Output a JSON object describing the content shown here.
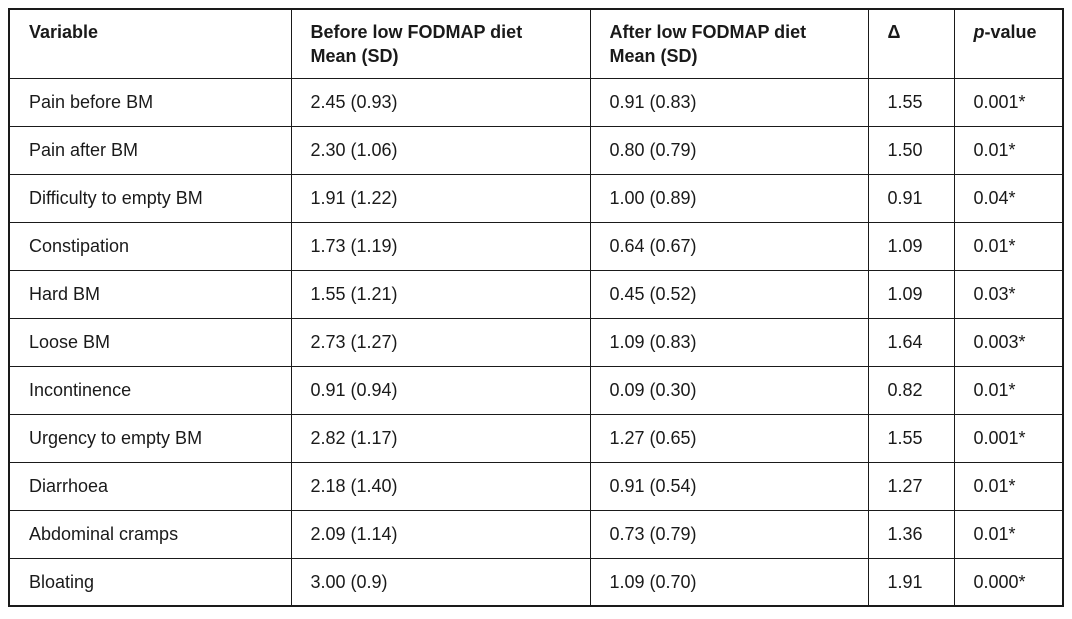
{
  "table": {
    "headers": {
      "variable": "Variable",
      "before": {
        "line1": "Before low FODMAP diet",
        "line2": "Mean (SD)"
      },
      "after": {
        "line1": "After low FODMAP diet",
        "line2": "Mean (SD)"
      },
      "delta": "Δ",
      "p_value": {
        "italic": "p",
        "rest": "-value"
      }
    },
    "rows": [
      {
        "variable": "Pain before BM",
        "before": "2.45 (0.93)",
        "after": "0.91 (0.83)",
        "delta": "1.55",
        "p_value": "0.001*"
      },
      {
        "variable": "Pain after BM",
        "before": "2.30 (1.06)",
        "after": "0.80 (0.79)",
        "delta": "1.50",
        "p_value": "0.01*"
      },
      {
        "variable": "Difficulty to empty BM",
        "before": "1.91 (1.22)",
        "after": "1.00 (0.89)",
        "delta": "0.91",
        "p_value": "0.04*"
      },
      {
        "variable": "Constipation",
        "before": "1.73 (1.19)",
        "after": "0.64 (0.67)",
        "delta": "1.09",
        "p_value": "0.01*"
      },
      {
        "variable": "Hard BM",
        "before": "1.55 (1.21)",
        "after": "0.45 (0.52)",
        "delta": "1.09",
        "p_value": "0.03*"
      },
      {
        "variable": "Loose BM",
        "before": "2.73 (1.27)",
        "after": "1.09 (0.83)",
        "delta": "1.64",
        "p_value": "0.003*"
      },
      {
        "variable": "Incontinence",
        "before": "0.91 (0.94)",
        "after": "0.09 (0.30)",
        "delta": "0.82",
        "p_value": "0.01*"
      },
      {
        "variable": "Urgency to empty BM",
        "before": "2.82 (1.17)",
        "after": "1.27 (0.65)",
        "delta": "1.55",
        "p_value": "0.001*"
      },
      {
        "variable": "Diarrhoea",
        "before": "2.18 (1.40)",
        "after": "0.91 (0.54)",
        "delta": "1.27",
        "p_value": "0.01*"
      },
      {
        "variable": "Abdominal cramps",
        "before": "2.09 (1.14)",
        "after": "0.73 (0.79)",
        "delta": "1.36",
        "p_value": "0.01*"
      },
      {
        "variable": "Bloating",
        "before": "3.00 (0.9)",
        "after": "1.09 (0.70)",
        "delta": "1.91",
        "p_value": "0.000*"
      }
    ],
    "colors": {
      "border": "#1a1a1a",
      "text": "#1a1a1a",
      "background": "#ffffff"
    }
  }
}
